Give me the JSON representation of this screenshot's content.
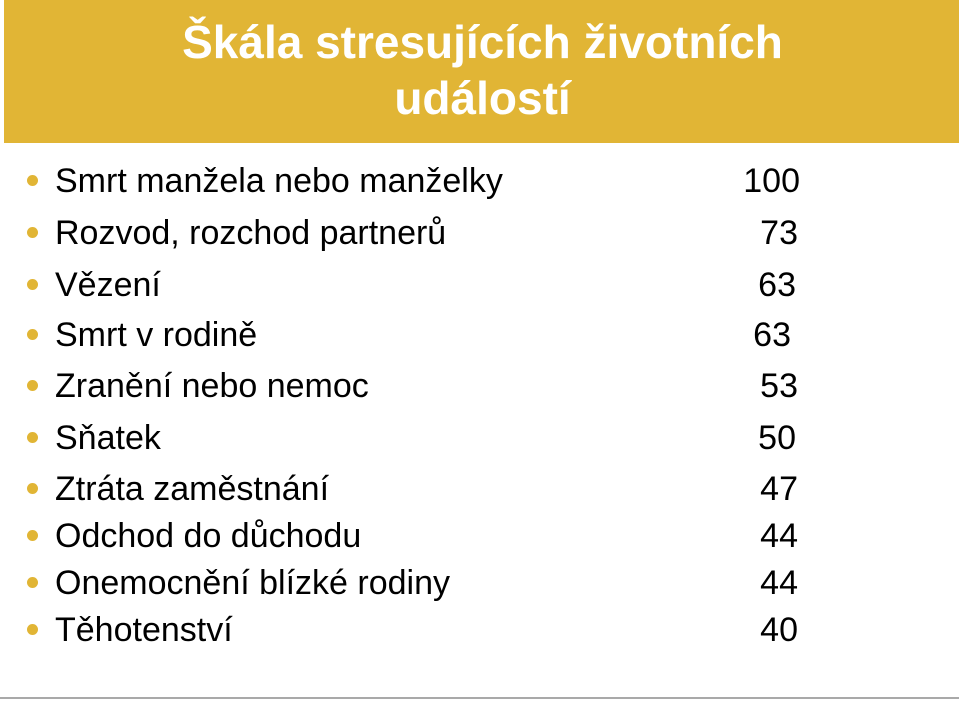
{
  "slide": {
    "title_line1": "Škála stresujících životních",
    "title_line2": "událostí",
    "items": [
      {
        "label": "Smrt manžela nebo manželky",
        "value": "100"
      },
      {
        "label": "Rozvod, rozchod partnerů",
        "value": "73"
      },
      {
        "label": "Vězení",
        "value": "63"
      },
      {
        "label": "Smrt v rodině",
        "value": "63"
      },
      {
        "label": "Zranění nebo nemoc",
        "value": "53"
      },
      {
        "label": "Sňatek",
        "value": "50"
      },
      {
        "label": "Ztráta zaměstnání",
        "value": "47"
      },
      {
        "label": "Odchod do důchodu",
        "value": "44"
      },
      {
        "label": "Onemocnění blízké rodiny",
        "value": "44"
      },
      {
        "label": "Těhotenství",
        "value": "40"
      }
    ]
  },
  "colors": {
    "accent": "#e1b535",
    "title_text": "#ffffff",
    "body_text": "#000000"
  }
}
